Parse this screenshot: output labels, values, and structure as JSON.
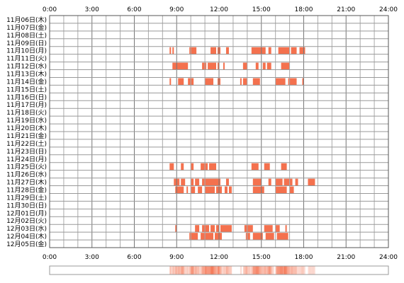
{
  "chart_data": {
    "type": "heatmap",
    "x_tick_labels": [
      "0:00",
      "3:00",
      "6:00",
      "9:00",
      "12:00",
      "15:00",
      "18:00",
      "21:00",
      "24:00"
    ],
    "x_range_hours": [
      0,
      24
    ],
    "grid": true,
    "rows": [
      {
        "label": "11月06日(木)",
        "spans": []
      },
      {
        "label": "11月07日(金)",
        "spans": []
      },
      {
        "label": "11月08日(土)",
        "spans": []
      },
      {
        "label": "11月09日(日)",
        "spans": []
      },
      {
        "label": "11月10日(月)",
        "spans": [
          [
            8.5,
            8.6
          ],
          [
            8.7,
            8.8
          ],
          [
            9.9,
            10.4
          ],
          [
            11.4,
            11.8
          ],
          [
            11.9,
            12.1
          ],
          [
            12.5,
            12.7
          ],
          [
            14.3,
            15.3
          ],
          [
            15.5,
            15.7
          ],
          [
            16.2,
            17.0
          ],
          [
            17.1,
            17.5
          ],
          [
            17.7,
            18.1
          ]
        ]
      },
      {
        "label": "11月11日(火)",
        "spans": []
      },
      {
        "label": "11月12日(水)",
        "spans": [
          [
            8.7,
            9.8
          ],
          [
            10.8,
            11.1
          ],
          [
            11.2,
            11.8
          ],
          [
            11.9,
            12.0
          ],
          [
            12.3,
            12.4
          ],
          [
            13.7,
            14.0
          ],
          [
            14.6,
            14.8
          ],
          [
            15.1,
            15.3
          ],
          [
            15.4,
            15.7
          ],
          [
            16.4,
            17.0
          ]
        ]
      },
      {
        "label": "11月13日(木)",
        "spans": []
      },
      {
        "label": "11月14日(金)",
        "spans": [
          [
            8.5,
            8.6
          ],
          [
            9.1,
            9.5
          ],
          [
            9.8,
            10.2
          ],
          [
            11.0,
            11.6
          ],
          [
            11.9,
            12.1
          ],
          [
            13.5,
            13.6
          ],
          [
            13.7,
            14.0
          ],
          [
            14.4,
            14.9
          ],
          [
            16.0,
            16.7
          ],
          [
            16.9,
            17.5
          ],
          [
            17.9,
            18.0
          ]
        ]
      },
      {
        "label": "11月15日(土)",
        "spans": []
      },
      {
        "label": "11月16日(日)",
        "spans": []
      },
      {
        "label": "11月17日(月)",
        "spans": []
      },
      {
        "label": "11月18日(火)",
        "spans": []
      },
      {
        "label": "11月19日(水)",
        "spans": []
      },
      {
        "label": "11月20日(木)",
        "spans": []
      },
      {
        "label": "11月21日(金)",
        "spans": []
      },
      {
        "label": "11月22日(土)",
        "spans": []
      },
      {
        "label": "11月23日(日)",
        "spans": []
      },
      {
        "label": "11月24日(月)",
        "spans": []
      },
      {
        "label": "11月25日(火)",
        "spans": [
          [
            8.5,
            8.8
          ],
          [
            9.3,
            9.5
          ],
          [
            10.0,
            10.2
          ],
          [
            10.7,
            11.2
          ],
          [
            11.3,
            11.8
          ],
          [
            14.3,
            14.8
          ],
          [
            15.2,
            15.6
          ],
          [
            16.4,
            16.8
          ]
        ]
      },
      {
        "label": "11月26日(水)",
        "spans": []
      },
      {
        "label": "11月27日(木)",
        "spans": [
          [
            8.8,
            9.2
          ],
          [
            9.3,
            9.6
          ],
          [
            10.0,
            10.2
          ],
          [
            10.3,
            10.6
          ],
          [
            10.8,
            12.1
          ],
          [
            12.5,
            12.7
          ],
          [
            14.4,
            15.0
          ],
          [
            15.5,
            15.7
          ],
          [
            16.0,
            16.5
          ],
          [
            16.6,
            17.2
          ],
          [
            17.4,
            17.6
          ],
          [
            18.3,
            18.8
          ]
        ]
      },
      {
        "label": "11月28日(金)",
        "spans": [
          [
            8.9,
            9.5
          ],
          [
            9.7,
            9.8
          ],
          [
            10.0,
            10.3
          ],
          [
            10.5,
            10.8
          ],
          [
            11.0,
            11.7
          ],
          [
            11.8,
            12.2
          ],
          [
            12.4,
            12.6
          ],
          [
            12.7,
            12.9
          ],
          [
            14.4,
            15.2
          ],
          [
            16.0,
            16.8
          ],
          [
            17.0,
            17.3
          ]
        ]
      },
      {
        "label": "11月29日(土)",
        "spans": []
      },
      {
        "label": "11月30日(日)",
        "spans": []
      },
      {
        "label": "12月01日(月)",
        "spans": []
      },
      {
        "label": "12月02日(火)",
        "spans": []
      },
      {
        "label": "12月03日(水)",
        "spans": [
          [
            8.9,
            9.0
          ],
          [
            10.3,
            10.6
          ],
          [
            10.8,
            11.3
          ],
          [
            11.4,
            11.7
          ],
          [
            11.8,
            12.0
          ],
          [
            12.1,
            12.9
          ],
          [
            13.8,
            14.4
          ],
          [
            15.2,
            15.8
          ],
          [
            16.0,
            16.3
          ],
          [
            16.7,
            16.8
          ]
        ]
      },
      {
        "label": "12月04日(木)",
        "spans": [
          [
            9.9,
            10.5
          ],
          [
            10.7,
            11.6
          ],
          [
            11.7,
            12.2
          ],
          [
            13.9,
            14.2
          ],
          [
            14.4,
            15.1
          ],
          [
            15.3,
            15.9
          ],
          [
            16.1,
            16.9
          ]
        ]
      },
      {
        "label": "12月05日(金)",
        "spans": []
      }
    ],
    "bar_color": "#f4714e",
    "summary_color": "#f4714e"
  }
}
